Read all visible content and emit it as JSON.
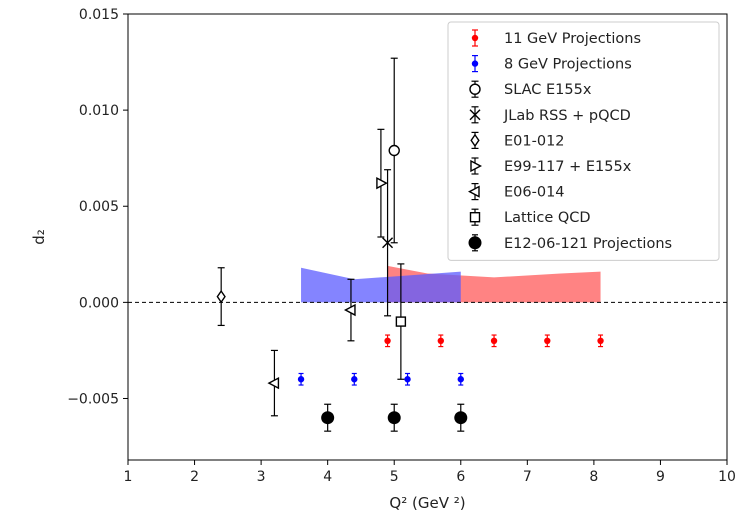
{
  "chart_data": {
    "type": "scatter",
    "title": "",
    "xlabel": "Q² (GeV ²)",
    "ylabel": "d₂",
    "xlim": [
      1,
      10
    ],
    "ylim": [
      -0.0082,
      0.015
    ],
    "xticks": [
      "1",
      "2",
      "3",
      "4",
      "5",
      "6",
      "7",
      "8",
      "9",
      "10"
    ],
    "yticks": [
      "0.015",
      "0.010",
      "0.005",
      "0.000",
      "−0.005"
    ],
    "ytick_values": [
      0.015,
      0.01,
      0.005,
      0.0,
      -0.005
    ],
    "grid": false,
    "legend": "top-right",
    "zero_line": true,
    "bands": [
      {
        "color": "#ff5a5a",
        "x": [
          4.9,
          5.5,
          6.5,
          7.5,
          8.1
        ],
        "lower": [
          0.0,
          0.0,
          0.0,
          0.0,
          0.0
        ],
        "upper": [
          0.0019,
          0.0015,
          0.0013,
          0.0015,
          0.0016
        ]
      },
      {
        "color": "#5b5bff",
        "x": [
          3.6,
          4.4,
          5.2,
          6.0
        ],
        "lower": [
          0.0,
          0.0,
          0.0,
          0.0
        ],
        "upper": [
          0.0018,
          0.0012,
          0.0014,
          0.0016
        ]
      }
    ],
    "series": [
      {
        "name": "11 GeV Projections",
        "marker": "dot",
        "color": "#ff0000",
        "x": [
          4.9,
          5.7,
          6.5,
          7.3,
          8.1
        ],
        "y": [
          -0.002,
          -0.002,
          -0.002,
          -0.002,
          -0.002
        ],
        "err": [
          0.0003,
          0.0003,
          0.0003,
          0.0003,
          0.0003
        ]
      },
      {
        "name": "8 GeV Projections",
        "marker": "dot",
        "color": "#0000ff",
        "x": [
          3.6,
          4.4,
          5.2,
          6.0
        ],
        "y": [
          -0.004,
          -0.004,
          -0.004,
          -0.004
        ],
        "err": [
          0.0003,
          0.0003,
          0.0003,
          0.0003
        ]
      },
      {
        "name": "SLAC E155x",
        "marker": "circle-open",
        "color": "#000000",
        "x": [
          5.0
        ],
        "y": [
          0.0079
        ],
        "err": [
          0.0048
        ]
      },
      {
        "name": "JLab RSS + pQCD",
        "marker": "x",
        "color": "#000000",
        "x": [
          4.9
        ],
        "y": [
          0.0031
        ],
        "err": [
          0.0038
        ]
      },
      {
        "name": "E01-012",
        "marker": "diamond-open",
        "color": "#000000",
        "x": [
          2.4
        ],
        "y": [
          0.0003
        ],
        "err": [
          0.0015
        ]
      },
      {
        "name": "E99-117 + E155x",
        "marker": "triangle-right-open",
        "color": "#000000",
        "x": [
          4.8
        ],
        "y": [
          0.0062
        ],
        "err": [
          0.0028
        ]
      },
      {
        "name": "E06-014",
        "marker": "triangle-left-open",
        "color": "#000000",
        "x": [
          3.2,
          4.35
        ],
        "y": [
          -0.0042,
          -0.0004
        ],
        "err": [
          0.0017,
          0.0016
        ]
      },
      {
        "name": "Lattice QCD",
        "marker": "square-open",
        "color": "#000000",
        "x": [
          5.1
        ],
        "y": [
          -0.001
        ],
        "err": [
          0.003
        ]
      },
      {
        "name": "E12-06-121 Projections",
        "marker": "dot-large",
        "color": "#000000",
        "x": [
          4.0,
          5.0,
          6.0
        ],
        "y": [
          -0.006,
          -0.006,
          -0.006
        ],
        "err": [
          0.0007,
          0.0007,
          0.0007
        ]
      }
    ]
  }
}
